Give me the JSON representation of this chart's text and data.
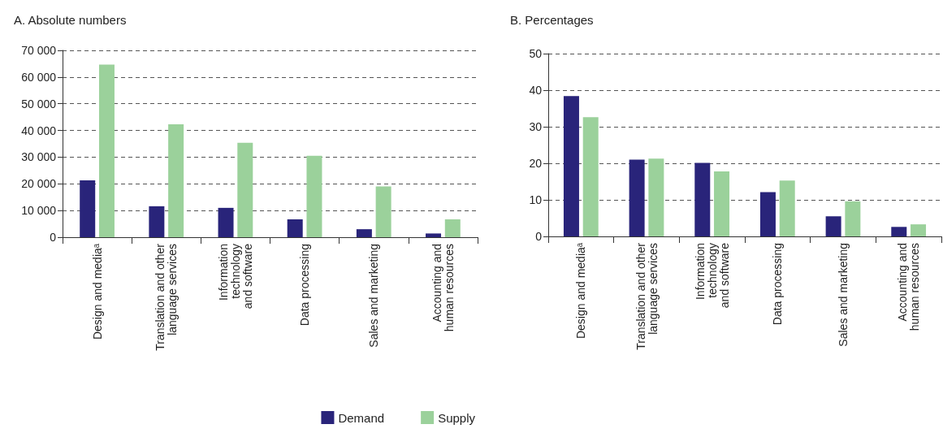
{
  "chart_data": [
    {
      "type": "bar",
      "title": "A. Absolute numbers",
      "categories": [
        "Design and mediaᵃ",
        "Translation and other\nlanguage services",
        "Information\ntechnology\nand software",
        "Data processing",
        "Sales and marketing",
        "Accounting and\nhuman resources"
      ],
      "series": [
        {
          "name": "Demand",
          "color": "#29247a",
          "values": [
            21300,
            11600,
            11000,
            6700,
            3000,
            1400
          ]
        },
        {
          "name": "Supply",
          "color": "#9bd19b",
          "values": [
            64700,
            42300,
            35400,
            30500,
            19000,
            6700
          ]
        }
      ],
      "ylim": [
        0,
        70000
      ],
      "yticks": [
        {
          "value": 0,
          "label": "0"
        },
        {
          "value": 10000,
          "label": "10 000"
        },
        {
          "value": 20000,
          "label": "20 000"
        },
        {
          "value": 30000,
          "label": "30 000"
        },
        {
          "value": 40000,
          "label": "40 000"
        },
        {
          "value": 50000,
          "label": "50 000"
        },
        {
          "value": 60000,
          "label": "60 000"
        },
        {
          "value": 70000,
          "label": "70 000"
        }
      ],
      "grid": "y",
      "legend": "bottom"
    },
    {
      "type": "bar",
      "title": "B. Percentages",
      "categories": [
        "Design and mediaᵃ",
        "Translation and other\nlanguage services",
        "Information\ntechnology\nand software",
        "Data processing",
        "Sales and marketing",
        "Accounting and\nhuman resources"
      ],
      "series": [
        {
          "color": "#29247a",
          "values": [
            38.4,
            21.0,
            20.1,
            12.1,
            5.5,
            2.6
          ]
        },
        {
          "color": "#9bd19b",
          "values": [
            32.6,
            21.3,
            17.8,
            15.3,
            9.6,
            3.3
          ]
        }
      ],
      "ylim": [
        0,
        50
      ],
      "yticks": [
        0,
        10,
        20,
        30,
        40,
        50
      ],
      "grid": "y"
    }
  ]
}
